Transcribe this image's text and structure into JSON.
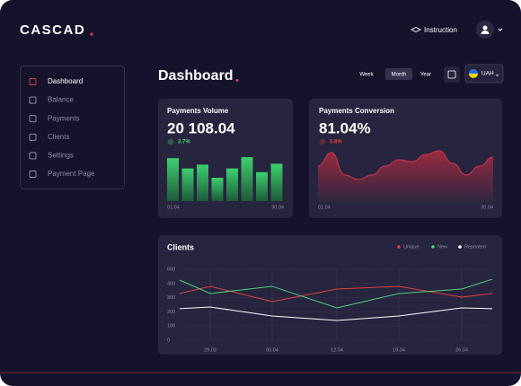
{
  "header": {
    "logo": "CASCAD",
    "instruction": "Instruction"
  },
  "sidebar": {
    "items": [
      "Dashboard",
      "Balance",
      "Payments",
      "Clients",
      "Settings",
      "Payment Page"
    ],
    "active": "Dashboard"
  },
  "page": {
    "title": "Dashboard",
    "periods": [
      "Week",
      "Month",
      "Year"
    ],
    "active_period": "Month",
    "currency": "UAH"
  },
  "volume": {
    "title": "Payments Volume",
    "value": "20 108.04",
    "change": "3.7%",
    "chart": {
      "type": "bar",
      "values": [
        46,
        35,
        39,
        25,
        35,
        47,
        31,
        40
      ],
      "ylim": [
        0,
        50
      ],
      "color": "#3ecf6e",
      "x_labels": [
        "01.04",
        "30.04"
      ]
    }
  },
  "conversion": {
    "title": "Payments Conversion",
    "value": "81.04%",
    "change": "5.8%",
    "chart": {
      "type": "area",
      "values": [
        41,
        56,
        31,
        26,
        31,
        41,
        48,
        46,
        54,
        58,
        44,
        31,
        41,
        51
      ],
      "ylim": [
        0,
        66
      ],
      "color": "#c0334a",
      "x_labels": [
        "01.04",
        "30.04"
      ]
    }
  },
  "clients": {
    "title": "Clients",
    "chart": {
      "type": "line",
      "categories": [
        null,
        "29.03",
        "05.04",
        "12.04",
        "19.04",
        "26.04",
        null
      ],
      "series": [
        {
          "name": "Unique",
          "color": "#e0413f",
          "values": [
            329,
            380,
            272,
            361,
            380,
            304,
            329
          ]
        },
        {
          "name": "New",
          "color": "#4fd27a",
          "values": [
            424,
            329,
            380,
            228,
            329,
            361,
            430
          ]
        },
        {
          "name": "Repeated",
          "color": "#ffffff",
          "values": [
            222,
            234,
            171,
            139,
            171,
            228,
            222
          ]
        }
      ],
      "ylim": [
        0,
        500
      ],
      "yticks": [
        0,
        100,
        200,
        300,
        400,
        500
      ],
      "grid": true
    }
  }
}
